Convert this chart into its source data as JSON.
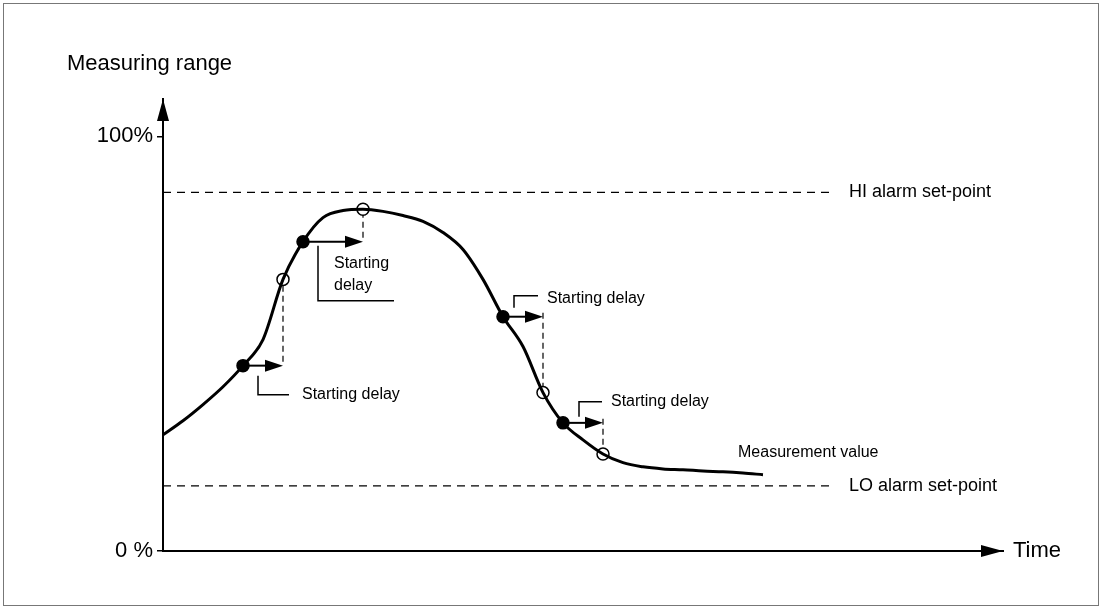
{
  "chart_data": {
    "type": "line",
    "xlabel": "Time",
    "ylabel": "Measuring range",
    "categories": [
      null,
      null,
      null,
      null,
      null,
      null,
      null,
      null,
      null,
      null,
      null,
      null,
      null,
      null,
      null,
      null,
      null,
      null,
      null,
      null,
      null,
      null,
      null,
      null,
      null,
      null,
      null,
      null,
      null,
      null,
      null,
      null,
      null,
      null,
      null,
      null,
      null,
      null,
      null,
      null,
      null,
      null,
      null
    ],
    "ylim": [
      0,
      109
    ],
    "yticks": [
      {
        "value": 0,
        "label": "0 %"
      },
      {
        "value": 100,
        "label": "100%"
      }
    ],
    "tick_labels": "y",
    "grid": false,
    "legend": false,
    "series": [
      {
        "color": "#000000",
        "marker": "none",
        "values": [
          28.0,
          31.4,
          35.3,
          39.6,
          44.7,
          51.0,
          65.5,
          74.6,
          80.4,
          82.1,
          82.4,
          81.9,
          80.9,
          79.5,
          76.8,
          72.7,
          65.5,
          56.5,
          49.3,
          38.2,
          30.9,
          26.8,
          23.4,
          21.3,
          20.3,
          19.8,
          19.6,
          19.3,
          19.1,
          18.8,
          18.4,
          null,
          null,
          null,
          null,
          null,
          null,
          null,
          null,
          null,
          null,
          null,
          null
        ]
      },
      {
        "type": "scatter",
        "color": "#000000",
        "marker": "circle",
        "values": [
          null,
          null,
          null,
          null,
          44.7,
          null,
          null,
          74.6,
          null,
          null,
          null,
          null,
          null,
          null,
          null,
          null,
          null,
          56.5,
          null,
          null,
          30.9,
          null,
          null,
          null,
          null,
          null,
          null,
          null,
          null,
          null,
          null,
          null,
          null,
          null,
          null,
          null,
          null,
          null,
          null,
          null,
          null,
          null,
          null
        ]
      },
      {
        "type": "scatter",
        "color": "#ffffff",
        "marker": "circle",
        "values": [
          null,
          null,
          null,
          null,
          null,
          null,
          65.5,
          null,
          null,
          null,
          82.4,
          null,
          null,
          null,
          null,
          null,
          null,
          null,
          null,
          38.2,
          null,
          null,
          23.4,
          null,
          null,
          null,
          null,
          null,
          null,
          null,
          null,
          null,
          null,
          null,
          null,
          null,
          null,
          null,
          null,
          null,
          null,
          null,
          null
        ]
      }
    ],
    "ref_lines": [
      {
        "axis": "y",
        "value": 86.5,
        "label": "HI alarm set-point",
        "line_style": "dashed",
        "color": "#000000"
      },
      {
        "axis": "y",
        "value": 15.7,
        "label": "LO alarm set-point",
        "line_style": "dashed",
        "color": "#000000"
      }
    ],
    "annotations": [
      "Starting delay",
      "Starting delay",
      "Starting delay",
      "Starting delay",
      "Measurement value"
    ]
  }
}
